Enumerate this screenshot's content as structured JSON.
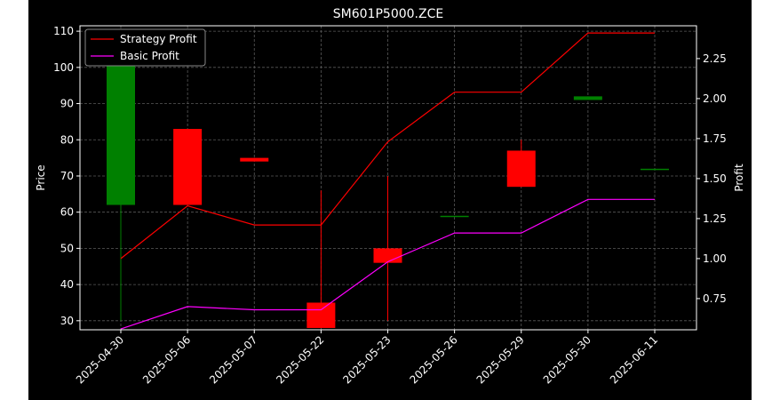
{
  "chart_data": {
    "type": "candlestick",
    "title": "SM601P5000.ZCE",
    "xlabel": "",
    "ylabel_left": "Price",
    "ylabel_right": "Profit",
    "categories": [
      "2025-04-30",
      "2025-05-06",
      "2025-05-07",
      "2025-05-22",
      "2025-05-23",
      "2025-05-26",
      "2025-05-29",
      "2025-05-30",
      "2025-06-11"
    ],
    "ohlc": [
      {
        "open": 62,
        "high": 110,
        "low": 30,
        "close": 110
      },
      {
        "open": 83,
        "high": 83,
        "low": 62,
        "close": 62
      },
      {
        "open": 75,
        "high": 75,
        "low": 74,
        "close": 74
      },
      {
        "open": 35,
        "high": 66,
        "low": 28,
        "close": 28
      },
      {
        "open": 50,
        "high": 70,
        "low": 30,
        "close": 46
      },
      {
        "open": 59,
        "high": 59,
        "low": 59,
        "close": 59
      },
      {
        "open": 77,
        "high": 80,
        "low": 67,
        "close": 67
      },
      {
        "open": 91,
        "high": 92,
        "low": 91,
        "close": 92
      },
      {
        "open": 72,
        "high": 72,
        "low": 72,
        "close": 72
      }
    ],
    "series": [
      {
        "name": "Strategy Profit",
        "color": "#ff0000",
        "values": [
          1.0,
          1.33,
          1.21,
          1.21,
          1.73,
          2.04,
          2.04,
          2.41,
          2.41
        ]
      },
      {
        "name": "Basic Profit",
        "color": "#ff00ff",
        "values": [
          0.56,
          0.7,
          0.68,
          0.68,
          0.98,
          1.16,
          1.16,
          1.37,
          1.37
        ]
      }
    ],
    "ylim_left": [
      27.5,
      111.5
    ],
    "ylim_right": [
      0.555,
      2.455
    ],
    "yticks_left": [
      30,
      40,
      50,
      60,
      70,
      80,
      90,
      100,
      110
    ],
    "yticks_right": [
      0.75,
      1.0,
      1.25,
      1.5,
      1.75,
      2.0,
      2.25
    ],
    "ytick_labels_right": [
      "0.75",
      "1.00",
      "1.25",
      "1.50",
      "1.75",
      "2.00",
      "2.25"
    ],
    "up_color": "#008000",
    "down_color": "#ff0000",
    "grid": true,
    "legend": "upper-left",
    "background": "#000000",
    "foreground": "#ffffff"
  }
}
